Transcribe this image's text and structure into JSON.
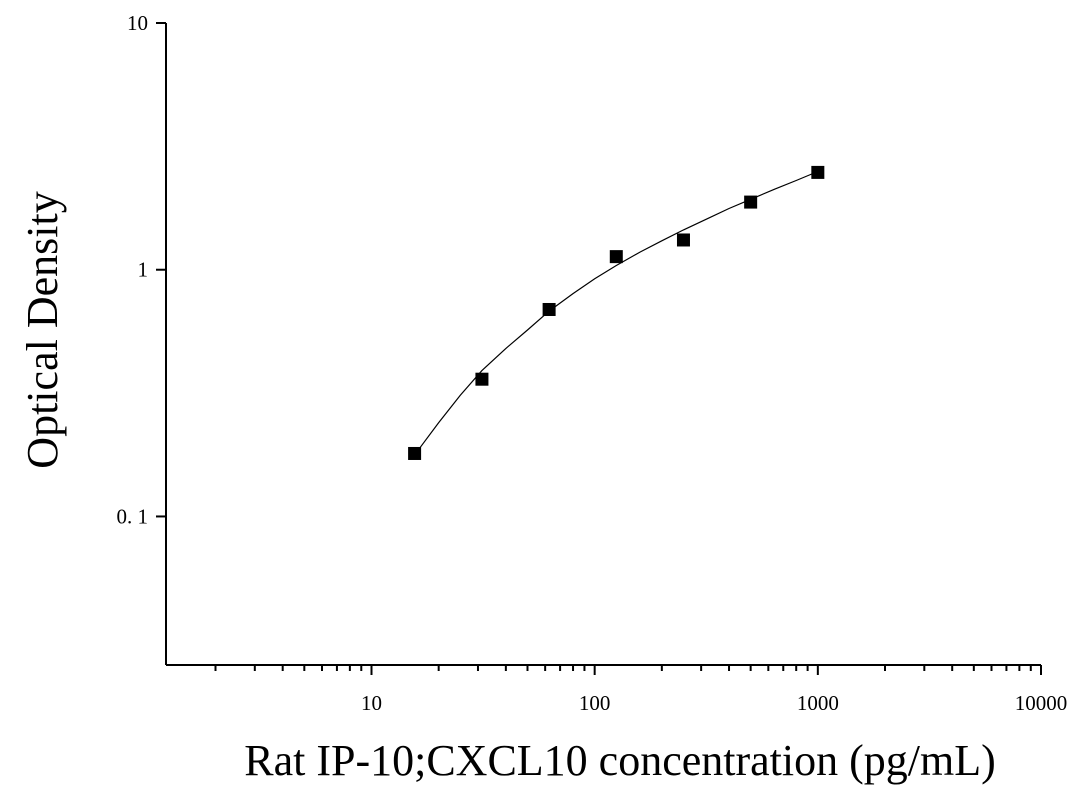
{
  "chart_data": {
    "type": "scatter",
    "title": "",
    "xlabel": "Rat IP-10;CXCL10 concentration (pg/mL)",
    "ylabel": "Optical Density",
    "xscale": "log",
    "yscale": "log",
    "xlim": [
      1.2,
      10000
    ],
    "ylim": [
      0.025,
      10
    ],
    "x_ticks": [
      10,
      100,
      1000,
      10000
    ],
    "x_tick_labels": [
      "10",
      "100",
      "1000",
      "10000"
    ],
    "y_ticks": [
      0.1,
      1,
      10
    ],
    "y_tick_labels": [
      "0. 1",
      "1",
      "10"
    ],
    "grid": false,
    "legend": "none",
    "series": [
      {
        "marker": "square",
        "color": "#000000",
        "x": [
          15.6,
          31.25,
          62.5,
          125,
          250,
          500,
          1000
        ],
        "y": [
          0.18,
          0.36,
          0.69,
          1.13,
          1.32,
          1.88,
          2.48
        ]
      }
    ],
    "fit_curve": {
      "color": "#000000",
      "x": [
        16.5,
        20,
        25,
        31.25,
        40,
        50,
        62.5,
        80,
        100,
        125,
        160,
        200,
        250,
        320,
        400,
        500,
        640,
        800,
        1000
      ],
      "y": [
        0.19,
        0.24,
        0.31,
        0.39,
        0.48,
        0.57,
        0.68,
        0.8,
        0.92,
        1.04,
        1.18,
        1.31,
        1.45,
        1.61,
        1.77,
        1.93,
        2.12,
        2.3,
        2.5
      ]
    }
  }
}
